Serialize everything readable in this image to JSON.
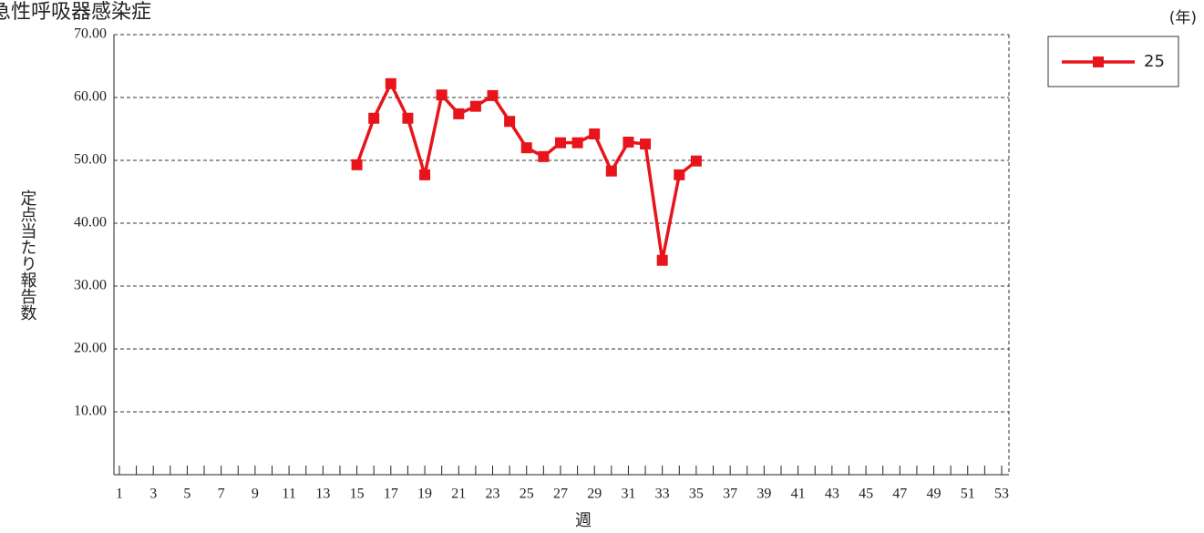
{
  "chart_data": {
    "type": "line",
    "title": "急性呼吸器感染症",
    "xlabel": "週",
    "ylabel": "定点当たり報告数",
    "legend_title": "(年)",
    "legend": "top-right-outside",
    "grid": true,
    "xlim": [
      0.68,
      53.43
    ],
    "ylim": [
      0,
      70
    ],
    "yticks": [
      {
        "value": 10,
        "label": "10.00"
      },
      {
        "value": 20,
        "label": "20.00"
      },
      {
        "value": 30,
        "label": "30.00"
      },
      {
        "value": 40,
        "label": "40.00"
      },
      {
        "value": 50,
        "label": "50.00"
      },
      {
        "value": 60,
        "label": "60.00"
      },
      {
        "value": 70,
        "label": "70.00"
      }
    ],
    "xticks": [
      1,
      3,
      5,
      7,
      9,
      11,
      13,
      15,
      17,
      19,
      21,
      23,
      25,
      27,
      29,
      31,
      33,
      35,
      37,
      39,
      41,
      43,
      45,
      47,
      49,
      51,
      53
    ],
    "x_minor_ticks": [
      2,
      4,
      6,
      8,
      10,
      12,
      14,
      16,
      18,
      20,
      22,
      24,
      26,
      28,
      30,
      32,
      34,
      36,
      38,
      40,
      42,
      44,
      46,
      48,
      50,
      52
    ],
    "x": [
      15,
      16,
      17,
      18,
      19,
      20,
      21,
      22,
      23,
      24,
      25,
      26,
      27,
      28,
      29,
      30,
      31,
      32,
      33,
      34,
      35
    ],
    "series": [
      {
        "name": "25",
        "color": "#e8141c",
        "values": [
          49.3,
          56.7,
          62.2,
          56.7,
          47.7,
          60.4,
          57.4,
          58.6,
          60.3,
          56.2,
          52.0,
          50.6,
          52.8,
          52.8,
          54.2,
          48.3,
          52.9,
          52.6,
          34.1,
          47.7,
          49.9
        ]
      }
    ]
  }
}
